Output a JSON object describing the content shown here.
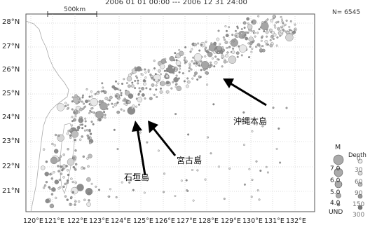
{
  "title": "2006 01 01 00:00 --- 2006 12 31 24:00",
  "count": "N= 6545",
  "scale": "500km",
  "lat_labels": [
    "28°N",
    "27°N",
    "26°N",
    "25°N",
    "24°N",
    "23°N",
    "22°N",
    "21°N"
  ],
  "lon_labels": [
    "120°E",
    "121°E",
    "122°E",
    "123°E",
    "124°E",
    "125°E",
    "126°E",
    "127°E",
    "128°E",
    "129°E",
    "130°E",
    "131°E",
    "132°E"
  ],
  "places": {
    "okinawa": "沖縄本島",
    "miyako": "宮古島",
    "ishigaki": "石垣島"
  },
  "legend": {
    "magnitude_title": "M",
    "magnitudes": [
      "7.0",
      "6.0",
      "5.0",
      "4.0",
      "UND"
    ],
    "depth_title": "Depth",
    "depths": [
      "0",
      "30",
      "60",
      "90",
      "150",
      "300"
    ]
  },
  "colors": {
    "background": "#ffffff",
    "frame": "#555555",
    "quake_fill": "#bdbdbd",
    "quake_stroke": "#6e6e6e",
    "arrow": "#000000"
  }
}
